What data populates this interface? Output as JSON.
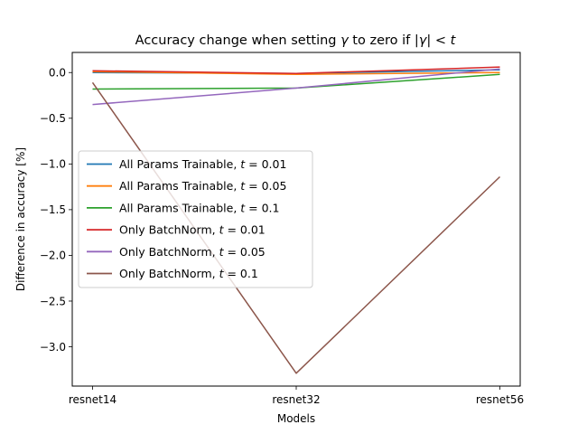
{
  "chart_data": {
    "type": "line",
    "title": "Accuracy change when setting γ to zero if |γ| < t",
    "xlabel": "Models",
    "ylabel": "Difference in accuracy [%]",
    "categories": [
      "resnet14",
      "resnet32",
      "resnet56"
    ],
    "ylim": [
      -3.43,
      0.22
    ],
    "yticks": [
      0.0,
      -0.5,
      -1.0,
      -1.5,
      -2.0,
      -2.5,
      -3.0
    ],
    "ytick_labels": [
      "0.0",
      "−0.5",
      "−1.0",
      "−1.5",
      "−2.0",
      "−2.5",
      "−3.0"
    ],
    "grid": false,
    "legend_position": "center-left",
    "series": [
      {
        "name": "All Params Trainable, t = 0.01",
        "name_prefix": "All Params Trainable, ",
        "name_t": "t",
        "name_suffix": " = 0.01",
        "color": "#1f77b4",
        "values": [
          0.0,
          -0.01,
          0.03
        ]
      },
      {
        "name": "All Params Trainable, t = 0.05",
        "name_prefix": "All Params Trainable, ",
        "name_t": "t",
        "name_suffix": " = 0.05",
        "color": "#ff7f0e",
        "values": [
          0.01,
          -0.02,
          0.0
        ]
      },
      {
        "name": "All Params Trainable, t = 0.1",
        "name_prefix": "All Params Trainable, ",
        "name_t": "t",
        "name_suffix": " = 0.1",
        "color": "#2ca02c",
        "values": [
          -0.18,
          -0.17,
          -0.02
        ]
      },
      {
        "name": "Only BatchNorm, t = 0.01",
        "name_prefix": "Only BatchNorm, ",
        "name_t": "t",
        "name_suffix": " = 0.01",
        "color": "#d62728",
        "values": [
          0.02,
          -0.01,
          0.06
        ]
      },
      {
        "name": "Only BatchNorm, t = 0.05",
        "name_prefix": "Only BatchNorm, ",
        "name_t": "t",
        "name_suffix": " = 0.05",
        "color": "#9467bd",
        "values": [
          -0.35,
          -0.17,
          0.04
        ]
      },
      {
        "name": "Only BatchNorm, t = 0.1",
        "name_prefix": "Only BatchNorm, ",
        "name_t": "t",
        "name_suffix": " = 0.1",
        "color": "#8c564b",
        "values": [
          -0.11,
          -3.29,
          -1.14
        ]
      }
    ]
  }
}
